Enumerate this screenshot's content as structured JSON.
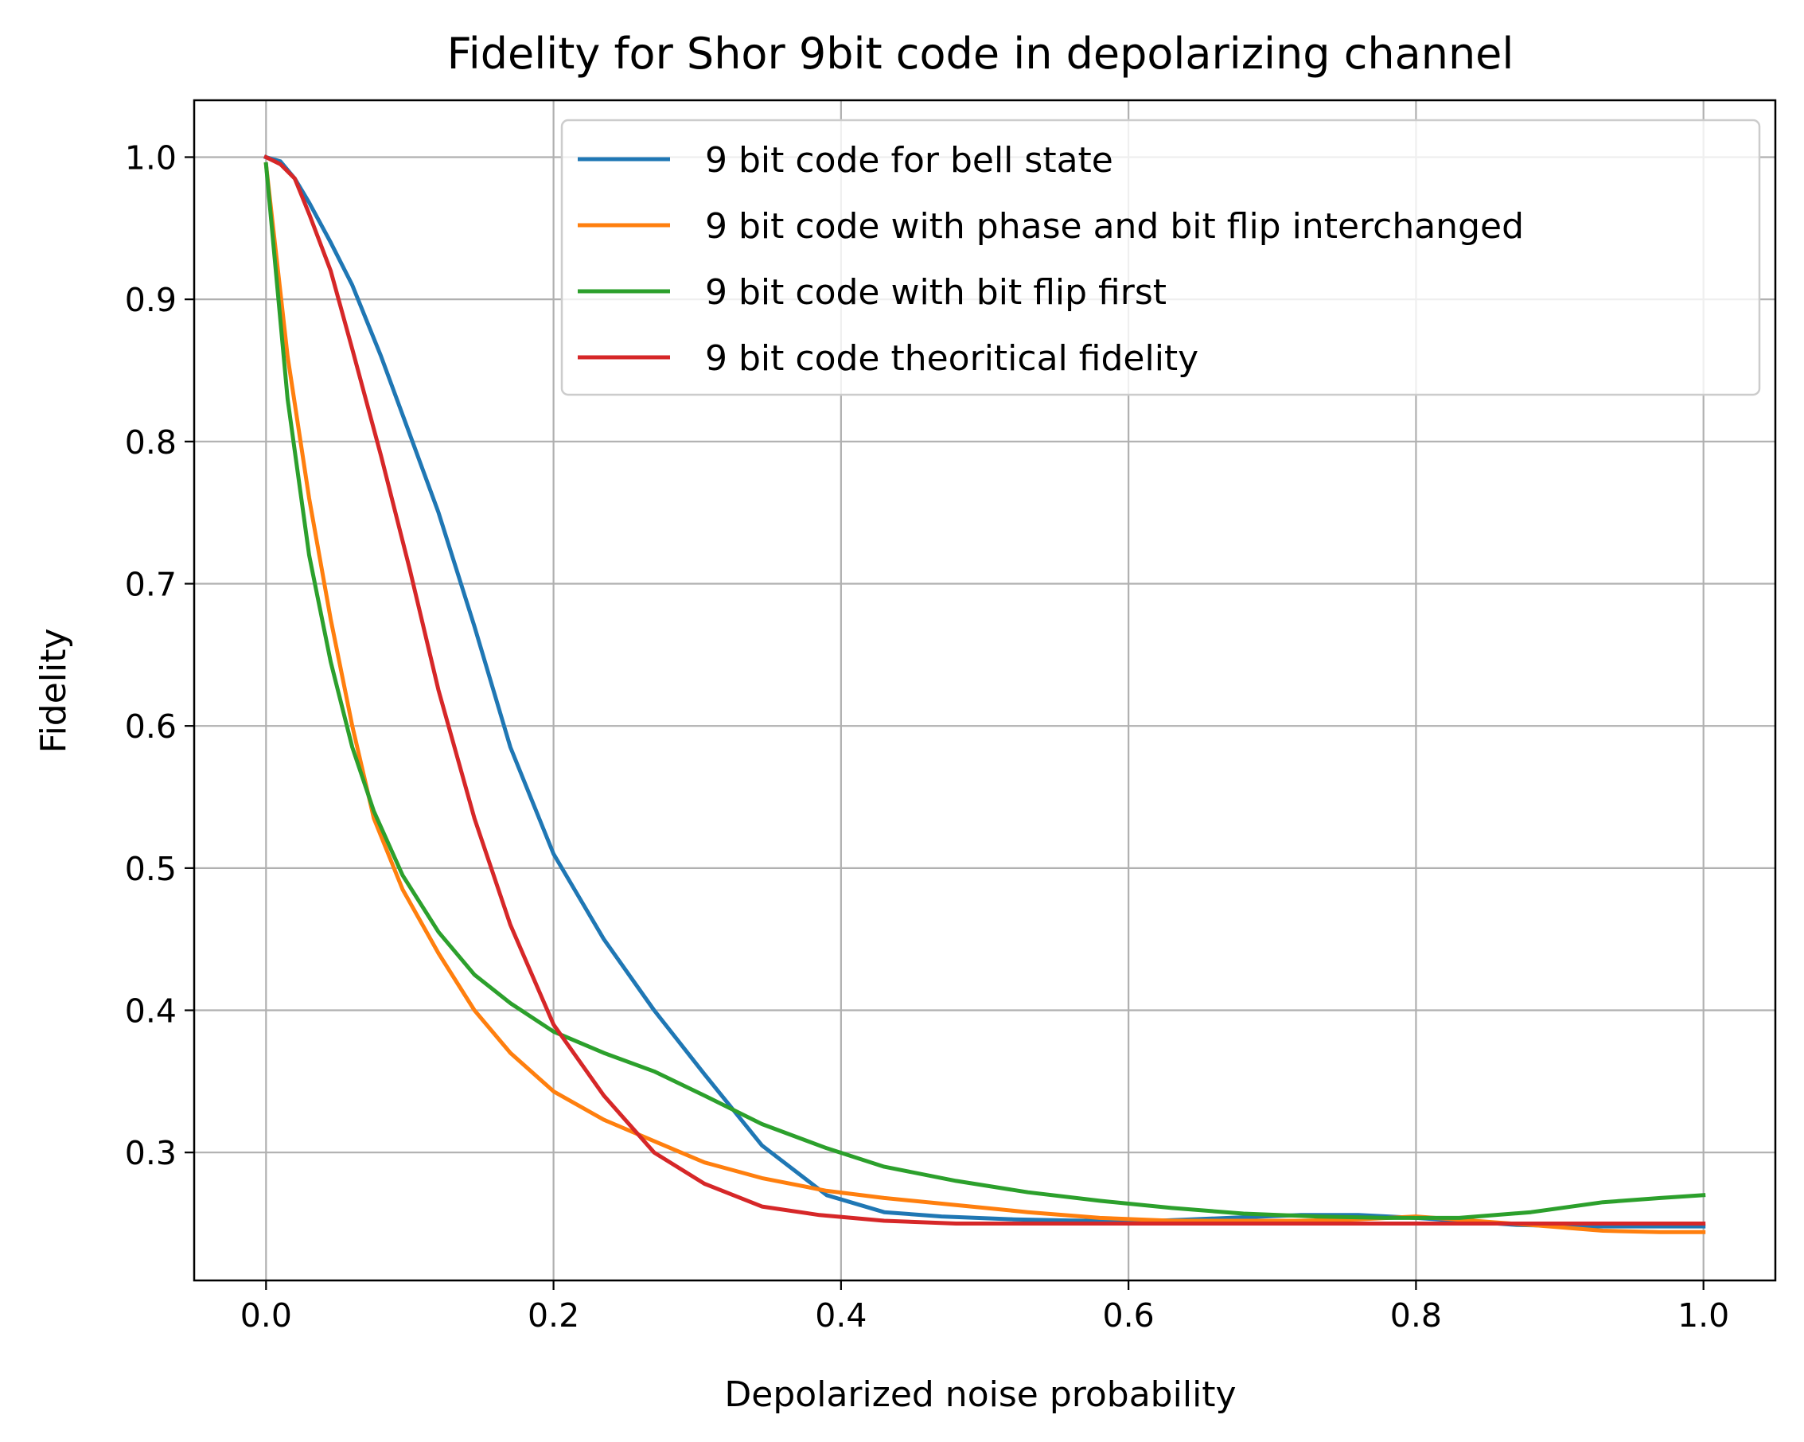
{
  "chart_data": {
    "type": "line",
    "title": "Fidelity for Shor 9bit code in depolarizing channel",
    "xlabel": "Depolarized noise probability",
    "ylabel": "Fidelity",
    "xlim": [
      -0.05,
      1.05
    ],
    "ylim": [
      0.21,
      1.04
    ],
    "xticks": [
      0.0,
      0.2,
      0.4,
      0.6,
      0.8,
      1.0
    ],
    "xtick_labels": [
      "0.0",
      "0.2",
      "0.4",
      "0.6",
      "0.8",
      "1.0"
    ],
    "yticks": [
      0.3,
      0.4,
      0.5,
      0.6,
      0.7,
      0.8,
      0.9,
      1.0
    ],
    "ytick_labels": [
      "0.3",
      "0.4",
      "0.5",
      "0.6",
      "0.7",
      "0.8",
      "0.9",
      "1.0"
    ],
    "grid": true,
    "legend_position": "upper right",
    "series": [
      {
        "name": "9 bit code for bell state",
        "color": "#1f77b4",
        "x": [
          0.0,
          0.01,
          0.02,
          0.03,
          0.045,
          0.06,
          0.08,
          0.1,
          0.12,
          0.145,
          0.17,
          0.2,
          0.235,
          0.27,
          0.305,
          0.345,
          0.39,
          0.43,
          0.47,
          0.52,
          0.57,
          0.62,
          0.67,
          0.72,
          0.76,
          0.8,
          0.83,
          0.87,
          0.92,
          0.96,
          1.0
        ],
        "y": [
          1.0,
          0.997,
          0.985,
          0.968,
          0.94,
          0.91,
          0.86,
          0.805,
          0.75,
          0.67,
          0.585,
          0.51,
          0.45,
          0.4,
          0.355,
          0.305,
          0.27,
          0.258,
          0.255,
          0.253,
          0.252,
          0.252,
          0.254,
          0.256,
          0.256,
          0.254,
          0.252,
          0.249,
          0.248,
          0.248,
          0.248
        ]
      },
      {
        "name": "9 bit code with phase and bit flip interchanged",
        "color": "#ff7f0e",
        "x": [
          0.0,
          0.015,
          0.03,
          0.045,
          0.06,
          0.075,
          0.095,
          0.12,
          0.145,
          0.17,
          0.2,
          0.235,
          0.27,
          0.305,
          0.345,
          0.39,
          0.43,
          0.48,
          0.53,
          0.58,
          0.63,
          0.68,
          0.72,
          0.76,
          0.8,
          0.84,
          0.88,
          0.93,
          0.97,
          1.0
        ],
        "y": [
          0.995,
          0.86,
          0.76,
          0.675,
          0.6,
          0.535,
          0.485,
          0.44,
          0.4,
          0.37,
          0.343,
          0.323,
          0.308,
          0.293,
          0.282,
          0.273,
          0.268,
          0.263,
          0.258,
          0.254,
          0.252,
          0.252,
          0.252,
          0.253,
          0.255,
          0.252,
          0.249,
          0.245,
          0.244,
          0.244
        ]
      },
      {
        "name": "9 bit code with bit flip first",
        "color": "#2ca02c",
        "x": [
          0.0,
          0.015,
          0.03,
          0.045,
          0.06,
          0.075,
          0.095,
          0.12,
          0.145,
          0.17,
          0.2,
          0.235,
          0.27,
          0.305,
          0.345,
          0.39,
          0.43,
          0.48,
          0.53,
          0.58,
          0.63,
          0.68,
          0.73,
          0.78,
          0.83,
          0.88,
          0.93,
          0.97,
          1.0
        ],
        "y": [
          0.995,
          0.83,
          0.72,
          0.645,
          0.585,
          0.54,
          0.495,
          0.455,
          0.425,
          0.405,
          0.385,
          0.37,
          0.357,
          0.34,
          0.32,
          0.303,
          0.29,
          0.28,
          0.272,
          0.266,
          0.261,
          0.257,
          0.255,
          0.254,
          0.254,
          0.258,
          0.265,
          0.268,
          0.27
        ]
      },
      {
        "name": "9 bit code theoritical fidelity",
        "color": "#d62728",
        "x": [
          0.0,
          0.01,
          0.02,
          0.03,
          0.045,
          0.06,
          0.08,
          0.1,
          0.12,
          0.145,
          0.17,
          0.2,
          0.235,
          0.27,
          0.305,
          0.345,
          0.385,
          0.43,
          0.48,
          0.53,
          0.58,
          0.63,
          0.68,
          0.73,
          0.78,
          0.83,
          0.88,
          0.93,
          1.0
        ],
        "y": [
          1.0,
          0.995,
          0.985,
          0.96,
          0.92,
          0.865,
          0.79,
          0.71,
          0.625,
          0.535,
          0.46,
          0.39,
          0.34,
          0.3,
          0.278,
          0.262,
          0.256,
          0.252,
          0.25,
          0.25,
          0.25,
          0.25,
          0.25,
          0.25,
          0.25,
          0.25,
          0.25,
          0.25,
          0.25
        ]
      }
    ]
  }
}
